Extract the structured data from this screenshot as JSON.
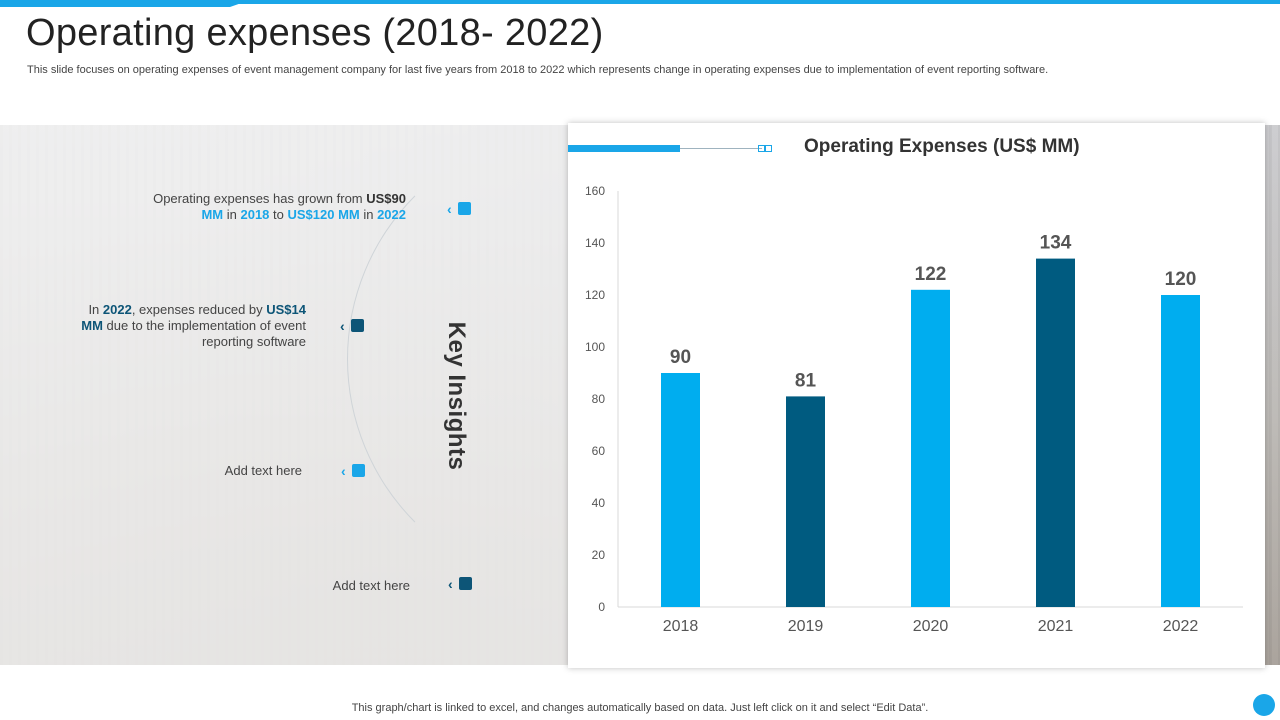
{
  "header": {
    "title": "Operating expenses (2018- 2022)",
    "subtitle": "This slide focuses on operating expenses of event management company for last five years from 2018 to 2022 which represents change in operating expenses due to implementation of event reporting software."
  },
  "insights": {
    "heading": "Key Insights",
    "item1": {
      "p1": "Operating expenses has grown from ",
      "p2": "US$90",
      "p3": "MM",
      "p4": " in ",
      "p5": "2018",
      "p6": " to ",
      "p7": "US$120 MM",
      "p8": " in ",
      "p9": "2022"
    },
    "item2": {
      "p1": "In ",
      "p2": "2022",
      "p3": ", expenses reduced by ",
      "p4": "US$14",
      "p5": "MM",
      "p6": " due to the implementation of event",
      "p7": "reporting software"
    },
    "item3": "Add text here",
    "item4": "Add text here"
  },
  "chart_data": {
    "type": "bar",
    "title": "Operating Expenses (US$ MM)",
    "categories": [
      "2018",
      "2019",
      "2020",
      "2021",
      "2022"
    ],
    "values": [
      90,
      81,
      122,
      134,
      120
    ],
    "ylim": [
      0,
      160
    ],
    "yticks": [
      0,
      20,
      40,
      60,
      80,
      100,
      120,
      140,
      160
    ],
    "colors": [
      "#00adef",
      "#005b80",
      "#00adef",
      "#005b80",
      "#00adef"
    ],
    "xlabel": "",
    "ylabel": "",
    "grid": false,
    "legend": "none"
  },
  "footer": {
    "note": "This graph/chart is linked to excel,  and changes automatically based on data. Just left click on it and select “Edit Data”."
  }
}
